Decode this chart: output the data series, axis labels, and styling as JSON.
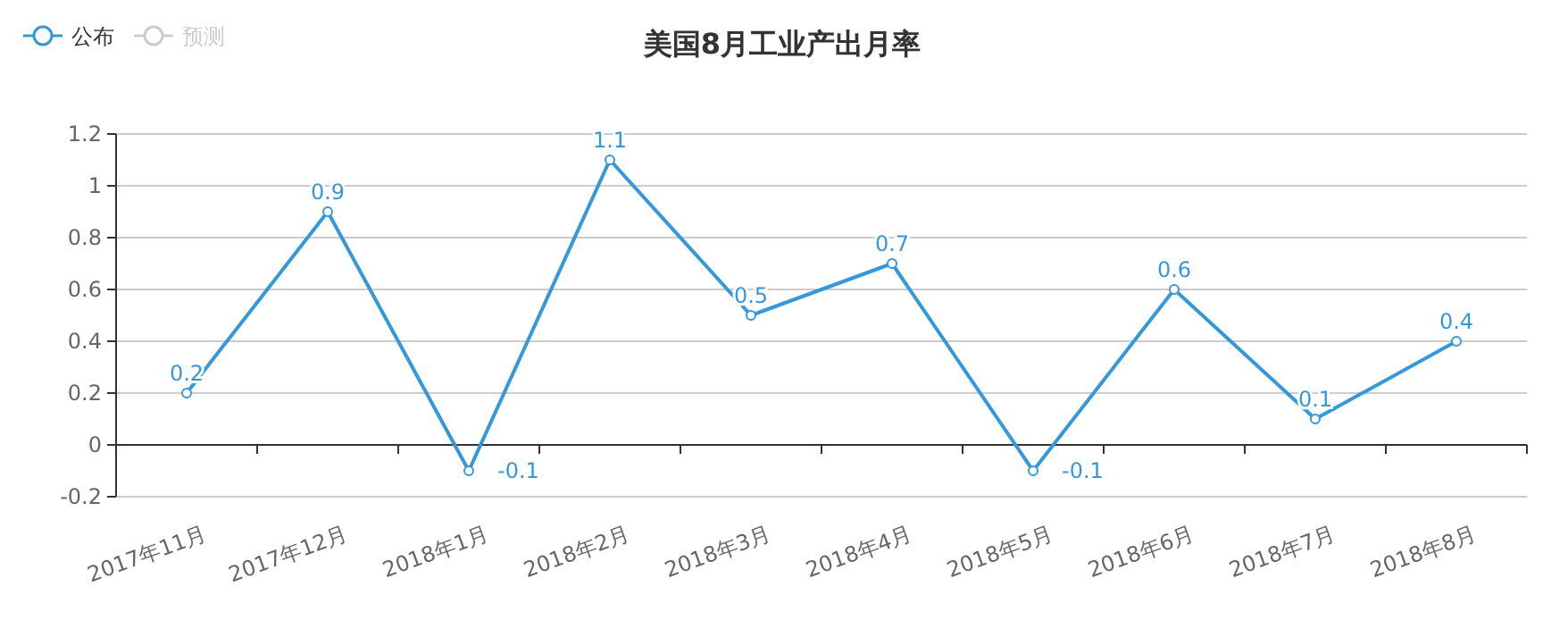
{
  "chart_data": {
    "type": "line",
    "title": "美国8月工业产出月率",
    "categories": [
      "2017年11月",
      "2017年12月",
      "2018年1月",
      "2018年2月",
      "2018年3月",
      "2018年4月",
      "2018年5月",
      "2018年6月",
      "2018年7月",
      "2018年8月"
    ],
    "series": [
      {
        "name": "公布",
        "color": "#3498db",
        "values": [
          0.2,
          0.9,
          -0.1,
          1.1,
          0.5,
          0.7,
          -0.1,
          0.6,
          0.1,
          0.4
        ]
      },
      {
        "name": "预测",
        "color": "#cccccc",
        "values": [
          null,
          null,
          null,
          null,
          null,
          null,
          null,
          null,
          null,
          null
        ]
      }
    ],
    "ylim": [
      -0.2,
      1.2
    ],
    "yticks": [
      -0.2,
      0,
      0.2,
      0.4,
      0.6,
      0.8,
      1,
      1.2
    ],
    "grid": "y",
    "legend": "top left",
    "marker": "circle",
    "line_style": "solid",
    "data_labels": true
  }
}
